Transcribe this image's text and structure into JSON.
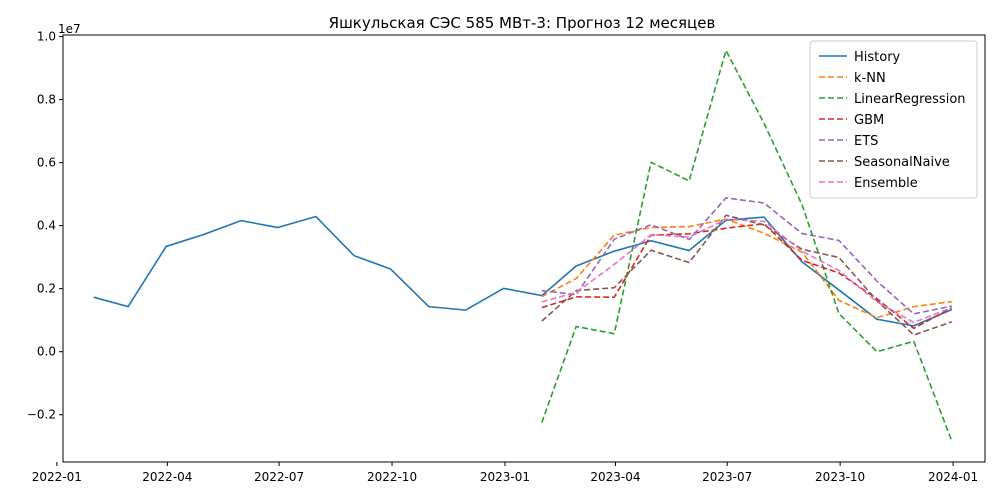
{
  "chart_data": {
    "type": "line",
    "title": "Яшкульская СЭС 585 МВт-3: Прогноз 12 месяцев",
    "xlabel": "",
    "ylabel": "",
    "y_multiplier_label": "1e7",
    "y_unit_scale": 10000000,
    "xlim": [
      "2022-01-06",
      "2024-01-27"
    ],
    "ylim": [
      -0.35,
      1.005
    ],
    "x_ticks": [
      "2022-01",
      "2022-04",
      "2022-07",
      "2022-10",
      "2023-01",
      "2023-04",
      "2023-07",
      "2023-10",
      "2024-01"
    ],
    "y_ticks": [
      -0.2,
      0.0,
      0.2,
      0.4,
      0.6,
      0.8,
      1.0
    ],
    "y_tick_labels": [
      "−0.2",
      "0.0",
      "0.2",
      "0.4",
      "0.6",
      "0.8",
      "1.0"
    ],
    "grid": false,
    "legend_position": "top-right",
    "series": [
      {
        "name": "History",
        "color": "#1f77b4",
        "style": "solid",
        "x": [
          "2022-01-31",
          "2022-02-28",
          "2022-03-31",
          "2022-04-30",
          "2022-05-31",
          "2022-06-30",
          "2022-07-31",
          "2022-08-31",
          "2022-09-30",
          "2022-10-31",
          "2022-11-30",
          "2022-12-31",
          "2023-01-31",
          "2023-02-28",
          "2023-03-31",
          "2023-04-30",
          "2023-05-31",
          "2023-06-30",
          "2023-07-31",
          "2023-08-31",
          "2023-09-30",
          "2023-10-31",
          "2023-11-30",
          "2023-12-31"
        ],
        "values": [
          0.173,
          0.143,
          0.334,
          0.371,
          0.416,
          0.394,
          0.429,
          0.305,
          0.262,
          0.143,
          0.132,
          0.201,
          0.178,
          0.272,
          0.319,
          0.352,
          0.321,
          0.417,
          0.427,
          0.285,
          0.196,
          0.103,
          0.082,
          0.134
        ]
      },
      {
        "name": "k-NN",
        "color": "#ff7f0e",
        "style": "dashed",
        "x": [
          "2023-01-31",
          "2023-02-28",
          "2023-03-31",
          "2023-04-30",
          "2023-05-31",
          "2023-06-30",
          "2023-07-31",
          "2023-08-31",
          "2023-09-30",
          "2023-10-31",
          "2023-11-30",
          "2023-12-31"
        ],
        "values": [
          0.175,
          0.232,
          0.37,
          0.394,
          0.397,
          0.421,
          0.376,
          0.316,
          0.163,
          0.108,
          0.143,
          0.159
        ]
      },
      {
        "name": "LinearRegression",
        "color": "#2ca02c",
        "style": "dashed",
        "x": [
          "2023-01-31",
          "2023-02-28",
          "2023-03-31",
          "2023-04-30",
          "2023-05-31",
          "2023-06-30",
          "2023-07-31",
          "2023-08-31",
          "2023-09-30",
          "2023-10-31",
          "2023-11-30",
          "2023-12-31"
        ],
        "values": [
          -0.225,
          0.08,
          0.057,
          0.601,
          0.542,
          0.956,
          0.725,
          0.466,
          0.121,
          0.0,
          0.033,
          -0.284
        ]
      },
      {
        "name": "GBM",
        "color": "#d62728",
        "style": "dashed",
        "x": [
          "2023-01-31",
          "2023-02-28",
          "2023-03-31",
          "2023-04-30",
          "2023-05-31",
          "2023-06-30",
          "2023-07-31",
          "2023-08-31",
          "2023-09-30",
          "2023-10-31",
          "2023-11-30",
          "2023-12-31"
        ],
        "values": [
          0.14,
          0.174,
          0.173,
          0.37,
          0.374,
          0.392,
          0.406,
          0.29,
          0.25,
          0.168,
          0.074,
          0.14
        ]
      },
      {
        "name": "ETS",
        "color": "#9467bd",
        "style": "dashed",
        "x": [
          "2023-01-31",
          "2023-02-28",
          "2023-03-31",
          "2023-04-30",
          "2023-05-31",
          "2023-06-30",
          "2023-07-31",
          "2023-08-31",
          "2023-09-30",
          "2023-10-31",
          "2023-11-30",
          "2023-12-31"
        ],
        "values": [
          0.194,
          0.181,
          0.357,
          0.403,
          0.356,
          0.488,
          0.472,
          0.375,
          0.353,
          0.224,
          0.12,
          0.145
        ]
      },
      {
        "name": "SeasonalNaive",
        "color": "#8c564b",
        "style": "dashed",
        "x": [
          "2023-01-31",
          "2023-02-28",
          "2023-03-31",
          "2023-04-30",
          "2023-05-31",
          "2023-06-30",
          "2023-07-31",
          "2023-08-31",
          "2023-09-30",
          "2023-10-31",
          "2023-11-30",
          "2023-12-31"
        ],
        "values": [
          0.097,
          0.194,
          0.203,
          0.322,
          0.283,
          0.433,
          0.402,
          0.325,
          0.299,
          0.162,
          0.053,
          0.095
        ]
      },
      {
        "name": "Ensemble",
        "color": "#e377c2",
        "style": "dashed",
        "x": [
          "2023-01-31",
          "2023-02-28",
          "2023-03-31",
          "2023-04-30",
          "2023-05-31",
          "2023-06-30",
          "2023-07-31",
          "2023-08-31",
          "2023-09-30",
          "2023-10-31",
          "2023-11-30",
          "2023-12-31"
        ],
        "values": [
          0.158,
          0.188,
          0.277,
          0.371,
          0.364,
          0.42,
          0.414,
          0.319,
          0.258,
          0.158,
          0.093,
          0.14
        ]
      }
    ]
  }
}
